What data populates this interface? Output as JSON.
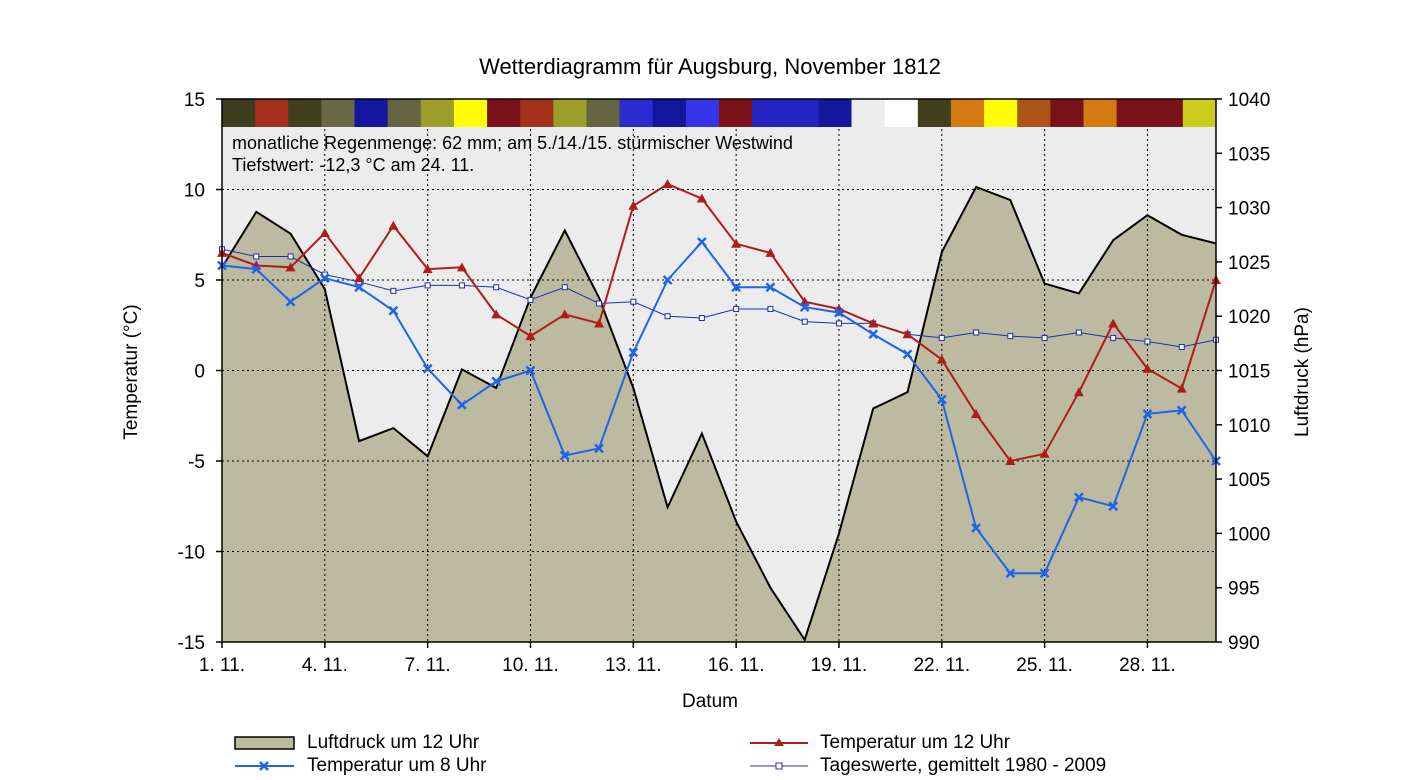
{
  "chart_data": {
    "type": "line",
    "title": "Wetterdiagramm für Augsburg, November 1812",
    "xlabel": "Datum",
    "ylabel_left": "Temperatur (°C)",
    "ylabel_right": "Luftdruck (hPa)",
    "ylim_left": [
      -15,
      15
    ],
    "ylim_right": [
      990,
      1040
    ],
    "xlim": [
      1,
      30
    ],
    "left_ticks": [
      "15",
      "10",
      "5",
      "0",
      "-5",
      "-10",
      "-15"
    ],
    "right_ticks": [
      "1040",
      "1035",
      "1030",
      "1025",
      "1020",
      "1015",
      "1010",
      "1005",
      "1000",
      "995",
      "990"
    ],
    "x_ticks": [
      {
        "day": 1,
        "label": "1. 11."
      },
      {
        "day": 4,
        "label": "4. 11."
      },
      {
        "day": 7,
        "label": "7. 11."
      },
      {
        "day": 10,
        "label": "10. 11."
      },
      {
        "day": 13,
        "label": "13. 11."
      },
      {
        "day": 16,
        "label": "16. 11."
      },
      {
        "day": 19,
        "label": "19. 11."
      },
      {
        "day": 22,
        "label": "22. 11."
      },
      {
        "day": 25,
        "label": "25. 11."
      },
      {
        "day": 28,
        "label": "28. 11."
      }
    ],
    "annotations": [
      "monatliche Regenmenge: 62 mm;  am 5./14./15. stürmischer Westwind",
      "Tiefstwert: -12,3 °C am 24. 11."
    ],
    "grid": true,
    "legend_position": "bottom",
    "days": [
      1,
      2,
      3,
      4,
      5,
      6,
      7,
      8,
      9,
      10,
      11,
      12,
      13,
      14,
      15,
      16,
      17,
      18,
      19,
      20,
      21,
      22,
      23,
      24,
      25,
      26,
      27,
      28,
      29,
      30
    ],
    "pressure_series": {
      "name": "Luftdruck um 12 Uhr",
      "axis": "right",
      "color": "#bcbba1",
      "values": [
        1024.5,
        1029.6,
        1027.6,
        1022.5,
        1008.5,
        1009.7,
        1007.1,
        1015.1,
        1013.4,
        1021.7,
        1027.9,
        1021.7,
        1013.4,
        1002.4,
        1009.2,
        1001.1,
        995.0,
        990.2,
        1000.0,
        1011.5,
        1013.0,
        1025.9,
        1031.9,
        1030.7,
        1023.0,
        1022.1,
        1027.0,
        1029.3,
        1027.5,
        1026.7
      ]
    },
    "series": [
      {
        "name": "Temperatur um 12 Uhr",
        "axis": "left",
        "color": "#b01c1c",
        "marker": "triangle",
        "values": [
          6.5,
          5.8,
          5.7,
          7.6,
          5.1,
          8.0,
          5.6,
          5.7,
          3.1,
          1.9,
          3.1,
          2.6,
          9.1,
          10.3,
          9.5,
          7.0,
          6.5,
          3.8,
          3.4,
          2.6,
          2.0,
          0.6,
          -2.4,
          -5.0,
          -4.6,
          -1.2,
          2.6,
          0.1,
          -1.0,
          5.0
        ]
      },
      {
        "name": "Temperatur um 8 Uhr",
        "axis": "left",
        "color": "#1f64e6",
        "marker": "cross",
        "values": [
          5.8,
          5.6,
          3.8,
          5.1,
          4.6,
          3.3,
          0.1,
          -1.9,
          -0.6,
          0.0,
          -4.7,
          -4.3,
          1.0,
          5.0,
          7.1,
          4.6,
          4.6,
          3.5,
          3.2,
          2.0,
          0.9,
          -1.6,
          -8.7,
          -11.2,
          -11.2,
          -7.0,
          -7.5,
          -2.4,
          -2.2,
          -5.0
        ]
      },
      {
        "name": "Tageswerte, gemittelt 1980 - 2009",
        "axis": "left",
        "color": "#1c2fb0",
        "marker": "square",
        "values": [
          6.7,
          6.3,
          6.3,
          5.3,
          4.9,
          4.4,
          4.7,
          4.7,
          4.6,
          3.9,
          4.6,
          3.7,
          3.8,
          3.0,
          2.9,
          3.4,
          3.4,
          2.7,
          2.6,
          2.6,
          2.0,
          1.8,
          2.1,
          1.9,
          1.8,
          2.1,
          1.8,
          1.6,
          1.3,
          1.7
        ]
      }
    ],
    "sky_colors": [
      "#3f3d1f",
      "#a3311b",
      "#40401e",
      "#686846",
      "#15169d",
      "#646440",
      "#9d9d29",
      "#ffff00",
      "#791319",
      "#a3311b",
      "#9d9d29",
      "#646440",
      "#2a2bd0",
      "#15169d",
      "#3434e8",
      "#791319",
      "#2525c2",
      "#2525c2",
      "#15169d",
      "#ececec",
      "#ffffff",
      "#40401e",
      "#d47a12",
      "#ffff00",
      "#ad5517",
      "#791319",
      "#d47a12",
      "#791319",
      "#791319",
      "#cccc1a"
    ]
  },
  "legend": [
    {
      "key": "pressure",
      "label": "Luftdruck um 12 Uhr"
    },
    {
      "key": "temp12",
      "label": "Temperatur um 12 Uhr"
    },
    {
      "key": "temp8",
      "label": "Temperatur um 8 Uhr"
    },
    {
      "key": "avg",
      "label": "Tageswerte, gemittelt 1980 - 2009"
    }
  ]
}
